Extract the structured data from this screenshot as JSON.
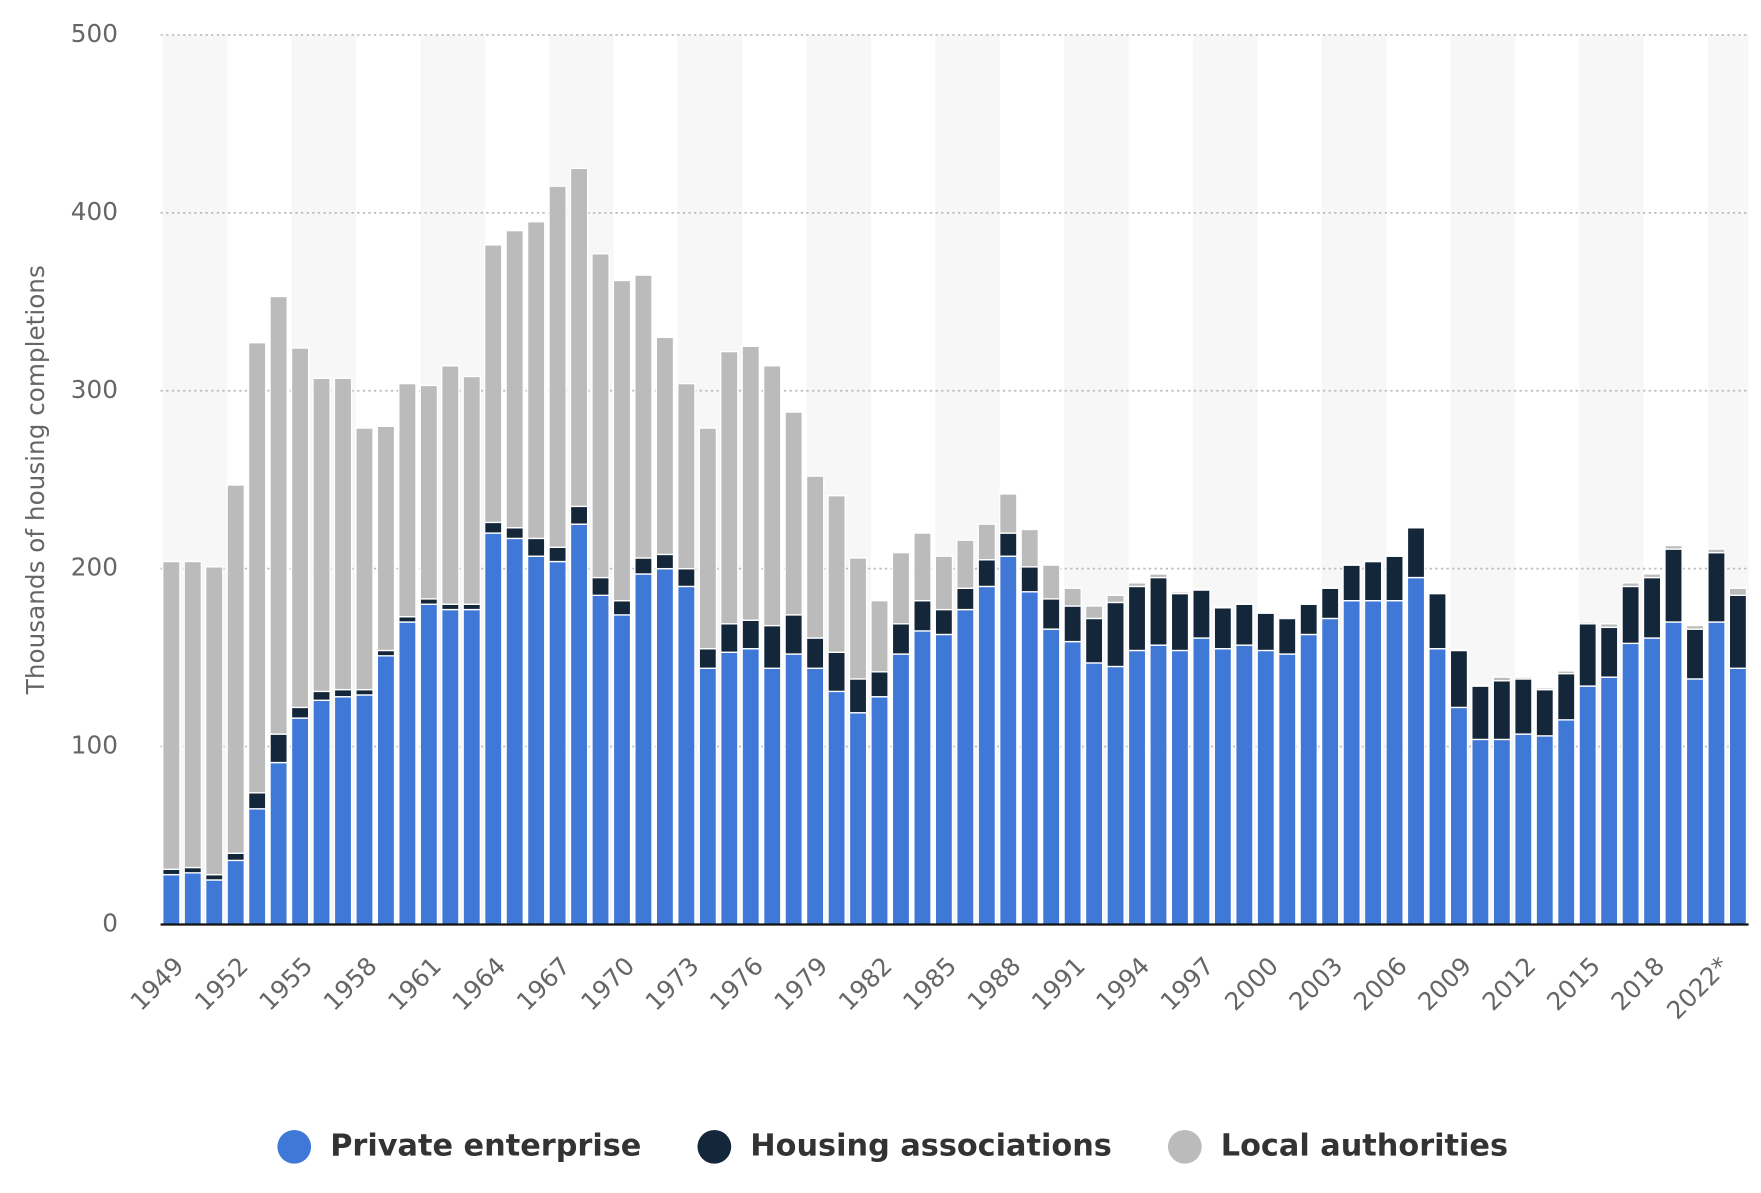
{
  "chart_data": {
    "type": "stacked-bar",
    "y_label": "Thousands of housing completions",
    "ylim": [
      0,
      500
    ],
    "yticks": [
      0,
      100,
      200,
      300,
      400,
      500
    ],
    "grid": true,
    "legend": "bottom",
    "categories": [
      "1949",
      null,
      null,
      "1952",
      null,
      null,
      "1955",
      null,
      null,
      "1958",
      null,
      null,
      "1961",
      null,
      null,
      "1964",
      null,
      null,
      "1967",
      null,
      null,
      "1970",
      null,
      null,
      "1973",
      null,
      null,
      "1976",
      null,
      null,
      "1979",
      null,
      null,
      "1982",
      null,
      null,
      "1985",
      null,
      null,
      "1988",
      null,
      null,
      "1991",
      null,
      null,
      "1994",
      null,
      null,
      "1997",
      null,
      null,
      "2000",
      null,
      null,
      "2003",
      null,
      null,
      "2006",
      null,
      null,
      "2009",
      null,
      null,
      "2012",
      null,
      null,
      "2015",
      null,
      null,
      "2018",
      null,
      null,
      "2022*",
      null
    ],
    "series": [
      {
        "name": "Private enterprise",
        "color": "#4078d8",
        "values": [
          28,
          29,
          25,
          36,
          65,
          91,
          116,
          126,
          128,
          129,
          151,
          170,
          180,
          177,
          177,
          220,
          217,
          207,
          204,
          225,
          185,
          174,
          197,
          200,
          190,
          144,
          153,
          155,
          144,
          152,
          144,
          131,
          119,
          128,
          152,
          165,
          163,
          177,
          190,
          207,
          187,
          166,
          159,
          147,
          145,
          154,
          157,
          154,
          161,
          155,
          157,
          154,
          152,
          163,
          172,
          182,
          182,
          182,
          195,
          155,
          122,
          104,
          104,
          107,
          106,
          115,
          134,
          139,
          158,
          161,
          170,
          138,
          170,
          144
        ]
      },
      {
        "name": "Housing associations",
        "color": "#14263a",
        "values": [
          3,
          3,
          3,
          4,
          9,
          16,
          6,
          5,
          4,
          3,
          3,
          3,
          3,
          3,
          3,
          6,
          6,
          10,
          8,
          10,
          10,
          8,
          9,
          8,
          10,
          11,
          16,
          16,
          24,
          22,
          17,
          22,
          19,
          14,
          17,
          17,
          14,
          12,
          15,
          13,
          14,
          17,
          20,
          25,
          36,
          36,
          38,
          32,
          27,
          23,
          23,
          21,
          20,
          17,
          17,
          20,
          22,
          25,
          28,
          31,
          32,
          30,
          33,
          31,
          26,
          26,
          35,
          28,
          32,
          34,
          41,
          28,
          39,
          41
        ]
      },
      {
        "name": "Local authorities",
        "color": "#bbbbbb",
        "values": [
          173,
          172,
          173,
          207,
          253,
          246,
          202,
          176,
          175,
          147,
          126,
          131,
          120,
          134,
          128,
          156,
          167,
          178,
          203,
          190,
          182,
          180,
          159,
          122,
          104,
          124,
          153,
          154,
          146,
          114,
          91,
          88,
          68,
          40,
          40,
          38,
          30,
          27,
          20,
          22,
          21,
          19,
          10,
          7,
          4,
          2,
          2,
          1,
          0.5,
          0.3,
          0.3,
          0.3,
          0.3,
          0.3,
          0.3,
          0.2,
          0.3,
          0.3,
          0.3,
          0.4,
          0.5,
          0.3,
          2,
          1,
          1,
          1.5,
          1,
          2,
          2,
          2,
          2,
          2,
          2,
          4
        ]
      }
    ]
  }
}
